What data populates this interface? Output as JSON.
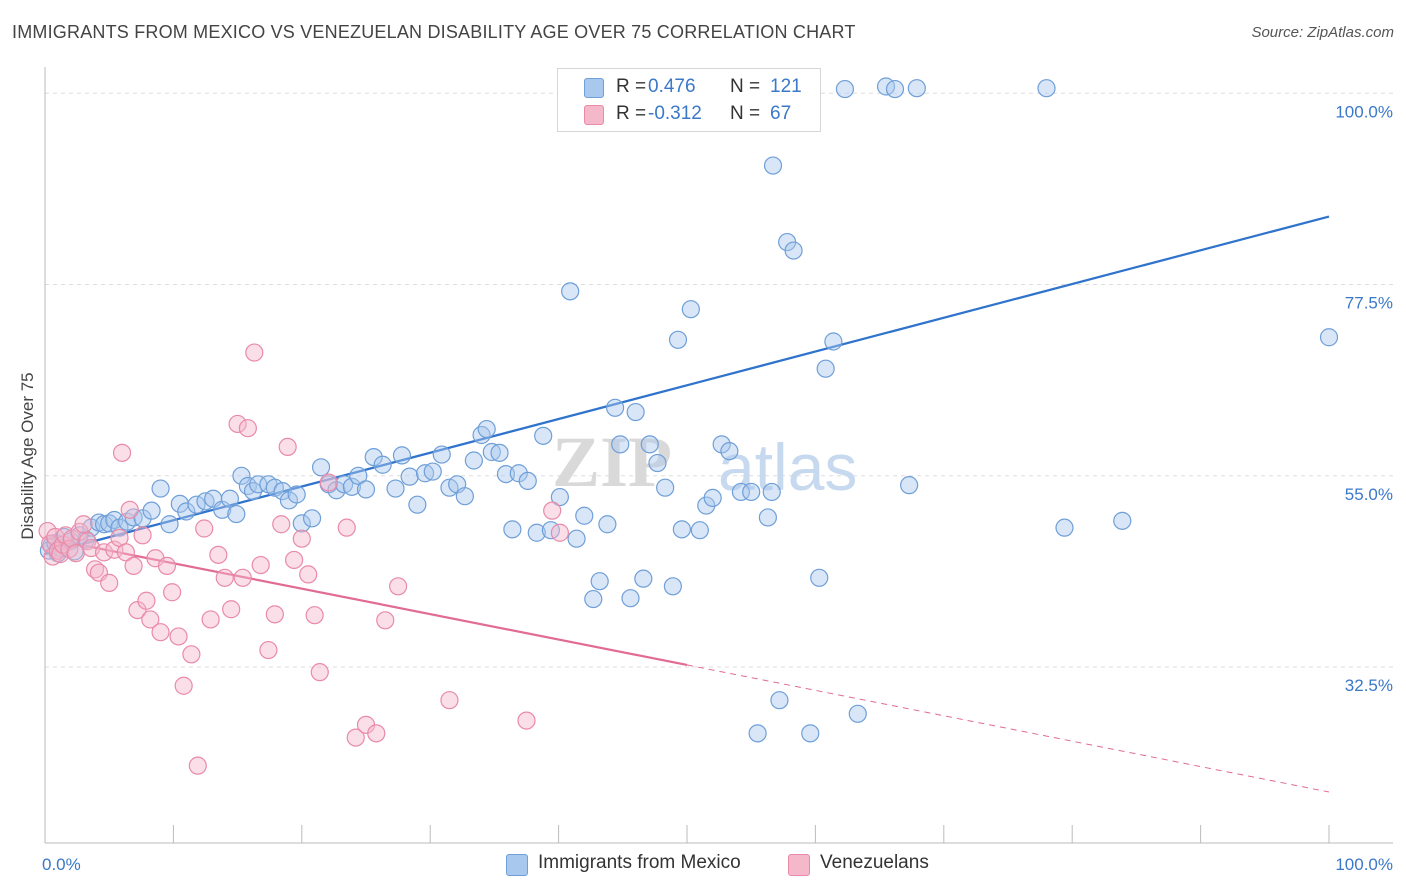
{
  "title": "IMMIGRANTS FROM MEXICO VS VENEZUELAN DISABILITY AGE OVER 75 CORRELATION CHART",
  "source": "Source: ZipAtlas.com",
  "watermark": {
    "zip": "ZIP",
    "atlas": "atlas"
  },
  "legend": {
    "r_label": "R =",
    "n_label": "N =",
    "mexico": {
      "r": "0.476",
      "n": "121"
    },
    "venezuelans": {
      "r": "-0.312",
      "n": "67"
    }
  },
  "colors": {
    "blue_fill": "#a9c8ee",
    "blue_stroke": "#6f9fd8",
    "blue_line": "#2f73cc",
    "blue_text": "#3a78c8",
    "pink_fill": "#f5b8cb",
    "pink_stroke": "#e98aa8",
    "pink_line": "#e26b93",
    "grid": "#dddddd"
  },
  "chart_data": {
    "type": "scatter",
    "title": "IMMIGRANTS FROM MEXICO VS VENEZUELAN DISABILITY AGE OVER 75 CORRELATION CHART",
    "xlabel": "",
    "ylabel": "Disability Age Over 75",
    "xlim": [
      0,
      100
    ],
    "ylim": [
      11.8,
      101.8
    ],
    "x_tick_labels": [
      "0.0%",
      "100.0%"
    ],
    "y_ticks": [
      32.5,
      55.0,
      77.5,
      100.0
    ],
    "y_tick_labels": [
      "32.5%",
      "55.0%",
      "77.5%",
      "100.0%"
    ],
    "grid": true,
    "legend_position": "top-center",
    "series": [
      {
        "name": "Immigrants from Mexico",
        "r": 0.476,
        "n": 121,
        "trend": {
          "x": [
            0,
            100
          ],
          "y": [
            45.8,
            85.5
          ],
          "dashed_from": null
        },
        "points": [
          [
            0.3,
            46.2
          ],
          [
            0.5,
            46.8
          ],
          [
            0.8,
            47.1
          ],
          [
            1.0,
            45.9
          ],
          [
            1.2,
            46.5
          ],
          [
            1.5,
            47.8
          ],
          [
            2.0,
            47.3
          ],
          [
            2.3,
            46.1
          ],
          [
            2.7,
            48.0
          ],
          [
            3.2,
            47.5
          ],
          [
            3.6,
            48.9
          ],
          [
            4.2,
            49.5
          ],
          [
            4.6,
            49.3
          ],
          [
            5.0,
            49.4
          ],
          [
            5.4,
            49.8
          ],
          [
            5.8,
            48.9
          ],
          [
            6.4,
            49.6
          ],
          [
            6.9,
            50.1
          ],
          [
            7.6,
            50.0
          ],
          [
            8.3,
            50.9
          ],
          [
            9.0,
            53.5
          ],
          [
            9.7,
            49.3
          ],
          [
            10.5,
            51.7
          ],
          [
            11.0,
            50.8
          ],
          [
            11.8,
            51.6
          ],
          [
            12.5,
            52.0
          ],
          [
            13.1,
            52.3
          ],
          [
            13.8,
            51.0
          ],
          [
            14.4,
            52.3
          ],
          [
            14.9,
            50.5
          ],
          [
            15.3,
            55.0
          ],
          [
            15.8,
            53.8
          ],
          [
            16.2,
            53.2
          ],
          [
            16.6,
            54.0
          ],
          [
            17.4,
            54.0
          ],
          [
            17.9,
            53.6
          ],
          [
            18.5,
            53.2
          ],
          [
            19.0,
            52.1
          ],
          [
            19.6,
            52.8
          ],
          [
            20.0,
            49.4
          ],
          [
            20.8,
            50.0
          ],
          [
            21.5,
            56.0
          ],
          [
            22.1,
            54.0
          ],
          [
            22.7,
            53.3
          ],
          [
            23.3,
            54.0
          ],
          [
            23.9,
            53.7
          ],
          [
            24.4,
            55.0
          ],
          [
            25.0,
            53.4
          ],
          [
            25.6,
            57.2
          ],
          [
            26.3,
            56.3
          ],
          [
            27.3,
            53.5
          ],
          [
            27.8,
            57.4
          ],
          [
            28.4,
            54.9
          ],
          [
            29.0,
            51.6
          ],
          [
            29.6,
            55.3
          ],
          [
            30.2,
            55.5
          ],
          [
            30.9,
            57.5
          ],
          [
            31.5,
            53.6
          ],
          [
            32.1,
            54.0
          ],
          [
            32.7,
            52.6
          ],
          [
            33.4,
            56.8
          ],
          [
            34.0,
            59.8
          ],
          [
            34.4,
            60.5
          ],
          [
            34.8,
            57.8
          ],
          [
            35.4,
            57.7
          ],
          [
            35.9,
            55.2
          ],
          [
            36.4,
            48.7
          ],
          [
            36.9,
            55.3
          ],
          [
            37.6,
            54.4
          ],
          [
            38.3,
            48.3
          ],
          [
            38.8,
            59.7
          ],
          [
            39.4,
            48.6
          ],
          [
            40.1,
            52.5
          ],
          [
            40.9,
            76.7
          ],
          [
            41.4,
            47.6
          ],
          [
            42.0,
            50.3
          ],
          [
            42.7,
            40.5
          ],
          [
            43.2,
            42.6
          ],
          [
            43.8,
            49.3
          ],
          [
            44.4,
            63.0
          ],
          [
            44.8,
            58.7
          ],
          [
            45.6,
            40.6
          ],
          [
            46.0,
            62.5
          ],
          [
            46.6,
            42.9
          ],
          [
            47.1,
            58.7
          ],
          [
            47.7,
            56.5
          ],
          [
            48.3,
            53.6
          ],
          [
            48.9,
            42.0
          ],
          [
            49.3,
            71.0
          ],
          [
            49.6,
            48.7
          ],
          [
            50.3,
            74.6
          ],
          [
            51.0,
            48.6
          ],
          [
            51.5,
            51.5
          ],
          [
            52.0,
            52.4
          ],
          [
            52.7,
            58.7
          ],
          [
            53.3,
            57.9
          ],
          [
            54.2,
            53.1
          ],
          [
            55.0,
            53.1
          ],
          [
            55.5,
            24.7
          ],
          [
            56.3,
            50.1
          ],
          [
            56.6,
            53.1
          ],
          [
            56.7,
            91.5
          ],
          [
            57.2,
            28.6
          ],
          [
            57.8,
            82.5
          ],
          [
            58.3,
            81.5
          ],
          [
            58.9,
            100.6
          ],
          [
            59.6,
            24.7
          ],
          [
            60.3,
            43.0
          ],
          [
            60.8,
            67.6
          ],
          [
            61.4,
            70.8
          ],
          [
            62.3,
            100.5
          ],
          [
            63.3,
            27.0
          ],
          [
            65.5,
            100.8
          ],
          [
            66.2,
            100.5
          ],
          [
            67.3,
            53.9
          ],
          [
            67.9,
            100.6
          ],
          [
            78.0,
            100.6
          ],
          [
            79.4,
            48.9
          ],
          [
            83.9,
            49.7
          ],
          [
            100.0,
            71.3
          ]
        ]
      },
      {
        "name": "Venezuelans",
        "r": -0.312,
        "n": 67,
        "trend": {
          "x": [
            0,
            100
          ],
          "y": [
            47.7,
            17.8
          ],
          "dashed_from": 50
        },
        "points": [
          [
            0.2,
            48.5
          ],
          [
            0.4,
            47.0
          ],
          [
            0.6,
            45.5
          ],
          [
            0.8,
            47.8
          ],
          [
            1.0,
            46.2
          ],
          [
            1.2,
            45.8
          ],
          [
            1.4,
            46.9
          ],
          [
            1.6,
            48.0
          ],
          [
            1.9,
            46.4
          ],
          [
            2.1,
            47.6
          ],
          [
            2.4,
            45.9
          ],
          [
            2.7,
            48.4
          ],
          [
            3.0,
            49.3
          ],
          [
            3.3,
            47.3
          ],
          [
            3.6,
            46.5
          ],
          [
            3.9,
            44.0
          ],
          [
            4.2,
            43.6
          ],
          [
            4.6,
            46.0
          ],
          [
            5.0,
            42.4
          ],
          [
            5.4,
            46.3
          ],
          [
            5.8,
            47.7
          ],
          [
            6.0,
            57.7
          ],
          [
            6.3,
            46.0
          ],
          [
            6.6,
            51.0
          ],
          [
            6.9,
            44.4
          ],
          [
            7.2,
            39.2
          ],
          [
            7.6,
            48.0
          ],
          [
            7.9,
            40.3
          ],
          [
            8.2,
            38.1
          ],
          [
            8.6,
            45.3
          ],
          [
            9.0,
            36.6
          ],
          [
            9.5,
            44.4
          ],
          [
            9.9,
            41.3
          ],
          [
            10.4,
            36.1
          ],
          [
            10.8,
            30.3
          ],
          [
            11.4,
            34.0
          ],
          [
            11.9,
            20.9
          ],
          [
            12.4,
            48.8
          ],
          [
            12.9,
            38.1
          ],
          [
            13.5,
            45.7
          ],
          [
            14.0,
            43.0
          ],
          [
            14.5,
            39.3
          ],
          [
            15.0,
            61.1
          ],
          [
            15.4,
            43.0
          ],
          [
            15.8,
            60.6
          ],
          [
            16.3,
            69.5
          ],
          [
            16.8,
            44.5
          ],
          [
            17.4,
            34.5
          ],
          [
            17.9,
            38.7
          ],
          [
            18.4,
            49.3
          ],
          [
            18.9,
            58.4
          ],
          [
            19.4,
            45.1
          ],
          [
            20.0,
            47.6
          ],
          [
            20.5,
            43.4
          ],
          [
            21.0,
            38.6
          ],
          [
            21.4,
            31.9
          ],
          [
            22.1,
            54.2
          ],
          [
            23.5,
            48.9
          ],
          [
            24.2,
            24.2
          ],
          [
            25.0,
            25.7
          ],
          [
            25.8,
            24.7
          ],
          [
            26.5,
            38.0
          ],
          [
            27.5,
            42.0
          ],
          [
            31.5,
            28.6
          ],
          [
            37.5,
            26.2
          ],
          [
            39.5,
            50.9
          ],
          [
            40.1,
            48.3
          ]
        ]
      }
    ]
  },
  "bottom_legend": [
    "Immigrants from Mexico",
    "Venezuelans"
  ]
}
